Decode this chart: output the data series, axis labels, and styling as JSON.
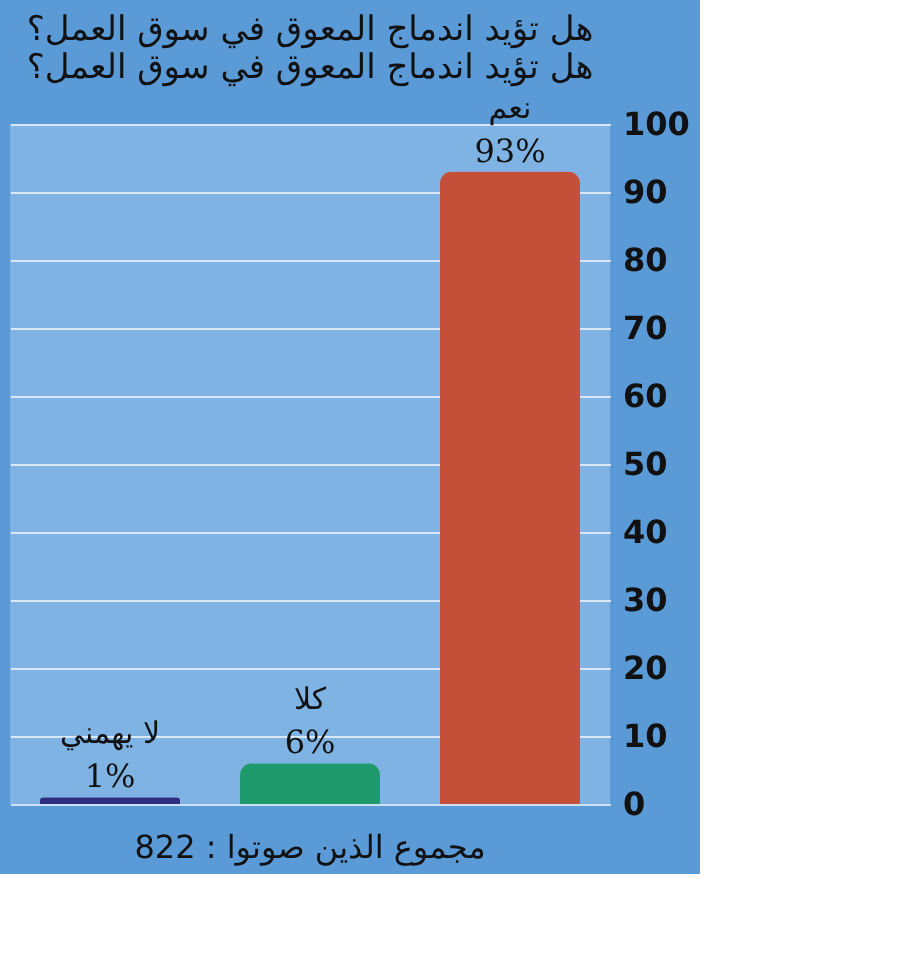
{
  "chart_data": {
    "type": "bar",
    "title": "هل تؤيد اندماج المعوق في سوق العمل؟ هل تؤيد اندماج المعوق في سوق العمل؟",
    "categories": [
      "لا يهمني",
      "كلا",
      "نعم"
    ],
    "values": [
      1,
      6,
      93
    ],
    "value_labels": [
      "1%",
      "6%",
      "93%"
    ],
    "colors": [
      "#2e2e80",
      "#1e9a6c",
      "#c4503a"
    ],
    "ylim": [
      0,
      100
    ],
    "yticks": [
      0,
      10,
      20,
      30,
      40,
      50,
      60,
      70,
      80,
      90,
      100
    ],
    "grid": "y",
    "annotations": [
      "مجموع الذين صوتوا :  822"
    ]
  }
}
